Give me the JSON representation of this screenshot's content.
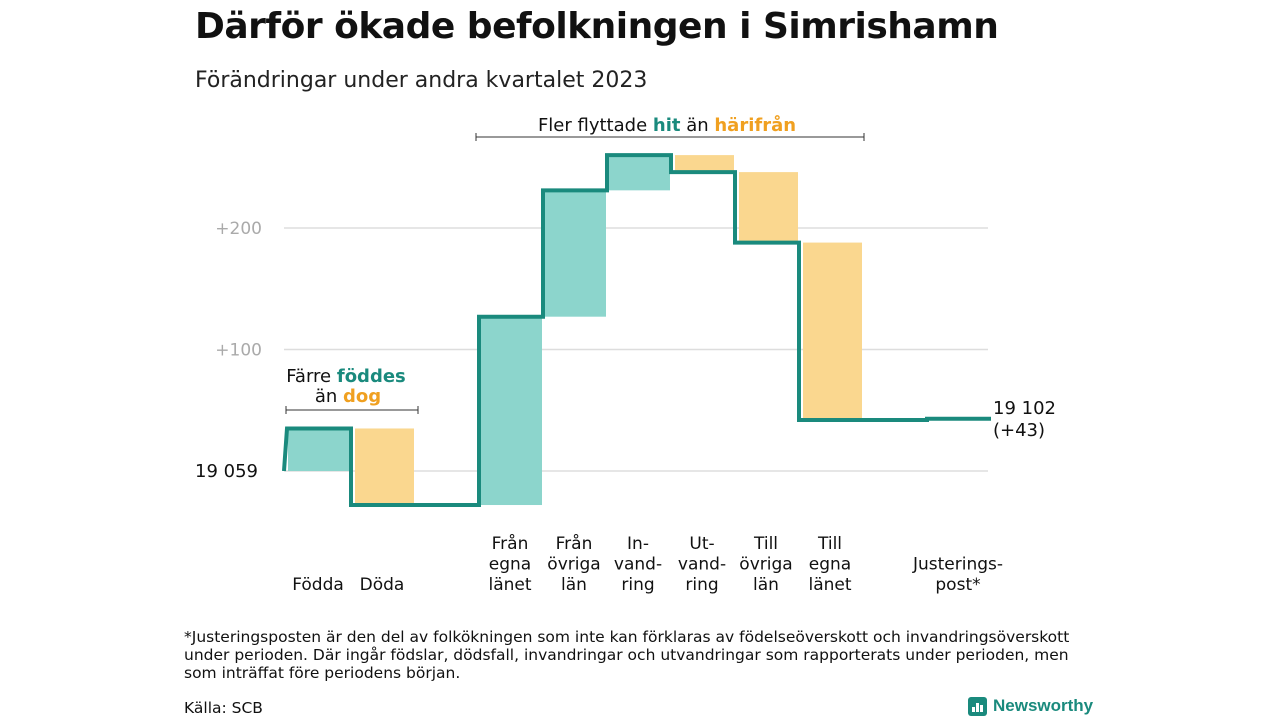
{
  "title": "Därför ökade befolkningen i Simrishamn",
  "subtitle": "Förändringar under andra kvartalet 2023",
  "colors": {
    "increase": "#8cd5cc",
    "decrease": "#fad78f",
    "line": "#1a8a7d",
    "grid": "#dddddd",
    "tick_text": "#aaaaaa"
  },
  "chart_data": {
    "type": "waterfall",
    "start": {
      "value": 19059,
      "label": "19  059"
    },
    "end": {
      "value": 19102,
      "label": "19 102",
      "change_label": "(+43)"
    },
    "yticks": [
      {
        "value": 100,
        "label": "+100"
      },
      {
        "value": 200,
        "label": "+200"
      }
    ],
    "ylim": [
      -40,
      270
    ],
    "steps": [
      {
        "category": [
          "Födda"
        ],
        "change": 35
      },
      {
        "category": [
          "Döda"
        ],
        "change": -63
      },
      {
        "category": [
          ""
        ],
        "change": 0
      },
      {
        "category": [
          "Från",
          "egna",
          "länet"
        ],
        "change": 155
      },
      {
        "category": [
          "Från",
          "övriga",
          "län"
        ],
        "change": 104
      },
      {
        "category": [
          "In-",
          "vand-",
          "ring"
        ],
        "change": 29
      },
      {
        "category": [
          "Ut-",
          "vand-",
          "ring"
        ],
        "change": -14
      },
      {
        "category": [
          "Till",
          "övriga",
          "län"
        ],
        "change": -58
      },
      {
        "category": [
          "Till",
          "egna",
          "länet"
        ],
        "change": -146
      },
      {
        "category": [
          ""
        ],
        "change": 0
      },
      {
        "category": [
          "Justerings-",
          "post*"
        ],
        "change": 1
      }
    ],
    "annotations": {
      "births_deaths": {
        "line1": "Färre ",
        "line1_highlight": "föddes",
        "line2": "än ",
        "line2_highlight": "dog"
      },
      "migration": {
        "text": "Fler flyttade ",
        "highlight1": "hit",
        "middle": " än ",
        "highlight2": "härifrån"
      }
    }
  },
  "footnote": "*Justeringsposten är den del av folkökningen som inte kan förklaras av födelseöverskott och invandringsöverskott under perioden. Där ingår födslar, dödsfall, invandringar och utvandringar som rapporterats under perioden, men som inträffat före periodens början.",
  "source": "Källa: SCB",
  "logo": {
    "name": "Newsworthy",
    "icon": "bar-chart-icon"
  }
}
